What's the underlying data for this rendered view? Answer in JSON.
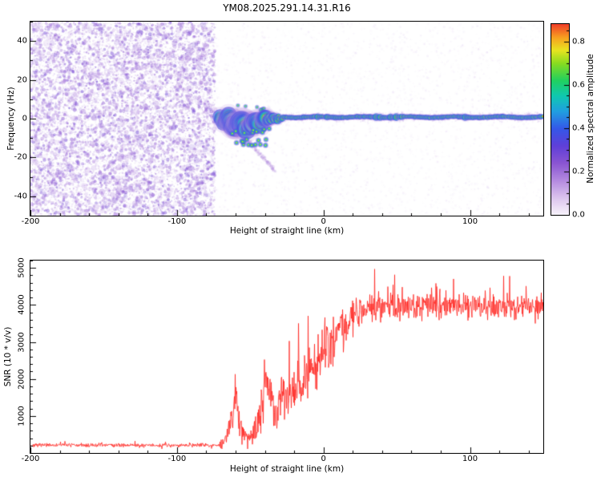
{
  "chart_data": [
    {
      "type": "heatmap",
      "title": "YM08.2025.291.14.31.R16",
      "xlabel": "Height of straight line (km)",
      "ylabel": "Frequency (Hz)",
      "xlim": [
        -200,
        150
      ],
      "ylim": [
        -50,
        50
      ],
      "xticks": [
        -200,
        -100,
        0,
        100
      ],
      "yticks": [
        -40,
        -20,
        0,
        20,
        40
      ],
      "xminor": 20,
      "yminor": 10,
      "colorbar": {
        "label": "Normalized spectral amplitude",
        "range": [
          0,
          0.88
        ],
        "ticks": [
          0,
          0.2,
          0.4,
          0.6,
          0.8
        ],
        "minor": 0.05,
        "colormap_stops": [
          [
            0.0,
            "#f8f4fb"
          ],
          [
            0.08,
            "#dcc4ee"
          ],
          [
            0.16,
            "#b48ae0"
          ],
          [
            0.24,
            "#8a55d2"
          ],
          [
            0.32,
            "#5f3fd8"
          ],
          [
            0.4,
            "#3558e8"
          ],
          [
            0.48,
            "#20a0e0"
          ],
          [
            0.55,
            "#10c8b0"
          ],
          [
            0.62,
            "#20d060"
          ],
          [
            0.7,
            "#88dc20"
          ],
          [
            0.76,
            "#e8e420"
          ],
          [
            0.82,
            "#f8a020"
          ],
          [
            0.88,
            "#f04028"
          ],
          [
            1.0,
            "#cc1038"
          ]
        ]
      },
      "regions": {
        "noise_band": {
          "x_range": [
            -200,
            -74
          ],
          "freq_range": [
            -50,
            50
          ],
          "amplitude_range": [
            0.03,
            0.3
          ],
          "description": "dense purple speckle noise filling full frequency band"
        },
        "background_speckle": {
          "x_range": [
            -74,
            150
          ],
          "amplitude_range": [
            0,
            0.15
          ],
          "description": "sparse faint lavender speckle around signal"
        },
        "signal_trace": {
          "x_range": [
            -71,
            150
          ],
          "peak_amplitude": 0.96,
          "turbulent_x_range": [
            -71,
            -28
          ],
          "center_freq_points": [
            [
              -71,
              0
            ],
            [
              -68,
              -2
            ],
            [
              -65,
              1
            ],
            [
              -62,
              -3
            ],
            [
              -59,
              -5
            ],
            [
              -56,
              -2
            ],
            [
              -53,
              -5
            ],
            [
              -50,
              -3
            ],
            [
              -47,
              -1
            ],
            [
              -44,
              -3
            ],
            [
              -41,
              0
            ],
            [
              -38,
              -1
            ],
            [
              -35,
              1
            ],
            [
              -32,
              0
            ],
            [
              -28,
              0.8
            ],
            [
              -20,
              0.8
            ],
            [
              0,
              0.8
            ],
            [
              150,
              0.8
            ]
          ],
          "width_hz_points": [
            [
              -71,
              2.1
            ],
            [
              -64,
              2.9
            ],
            [
              -58,
              3.3
            ],
            [
              -50,
              2.7
            ],
            [
              -44,
              2.5
            ],
            [
              -38,
              1.9
            ],
            [
              -32,
              1.2
            ],
            [
              -28,
              0.9
            ],
            [
              0,
              0.9
            ],
            [
              150,
              0.9
            ]
          ],
          "diagonal_streak": {
            "from_point": [
              -60,
              -4
            ],
            "to_point": [
              -33,
              -27
            ],
            "amplitude": 0.15
          }
        }
      }
    },
    {
      "type": "line",
      "xlabel": "Height of straight line (km)",
      "ylabel": "SNR (10 * v/v)",
      "xlim": [
        -200,
        150
      ],
      "ylim": [
        0,
        5200
      ],
      "xticks": [
        -200,
        -100,
        0,
        100
      ],
      "yticks": [
        1000,
        2000,
        3000,
        4000,
        5000
      ],
      "xminor": 20,
      "yminor": 200,
      "line_color": "#ff2520",
      "mean_points": [
        [
          -200,
          210
        ],
        [
          -72,
          210
        ],
        [
          -68,
          260
        ],
        [
          -63,
          900
        ],
        [
          -60,
          1500
        ],
        [
          -57,
          700
        ],
        [
          -54,
          450
        ],
        [
          -50,
          400
        ],
        [
          -46,
          650
        ],
        [
          -42,
          1500
        ],
        [
          -39,
          2200
        ],
        [
          -36,
          1400
        ],
        [
          -32,
          1100
        ],
        [
          -28,
          1700
        ],
        [
          -24,
          1400
        ],
        [
          -20,
          1900
        ],
        [
          -16,
          1700
        ],
        [
          -12,
          2100
        ],
        [
          -8,
          2300
        ],
        [
          -4,
          2500
        ],
        [
          0,
          2700
        ],
        [
          5,
          3000
        ],
        [
          10,
          3300
        ],
        [
          15,
          3500
        ],
        [
          20,
          3700
        ],
        [
          25,
          3850
        ],
        [
          35,
          3950
        ],
        [
          60,
          4000
        ],
        [
          90,
          3980
        ],
        [
          120,
          3950
        ],
        [
          150,
          3960
        ]
      ],
      "noise_points": [
        [
          -200,
          55
        ],
        [
          -72,
          55
        ],
        [
          -68,
          250
        ],
        [
          -63,
          650
        ],
        [
          -60,
          700
        ],
        [
          -56,
          400
        ],
        [
          -50,
          250
        ],
        [
          -45,
          500
        ],
        [
          -40,
          800
        ],
        [
          -35,
          700
        ],
        [
          -30,
          700
        ],
        [
          -25,
          750
        ],
        [
          -20,
          800
        ],
        [
          -15,
          800
        ],
        [
          -10,
          750
        ],
        [
          -5,
          750
        ],
        [
          0,
          700
        ],
        [
          10,
          650
        ],
        [
          20,
          550
        ],
        [
          30,
          450
        ],
        [
          50,
          380
        ],
        [
          100,
          380
        ],
        [
          150,
          380
        ]
      ]
    }
  ]
}
